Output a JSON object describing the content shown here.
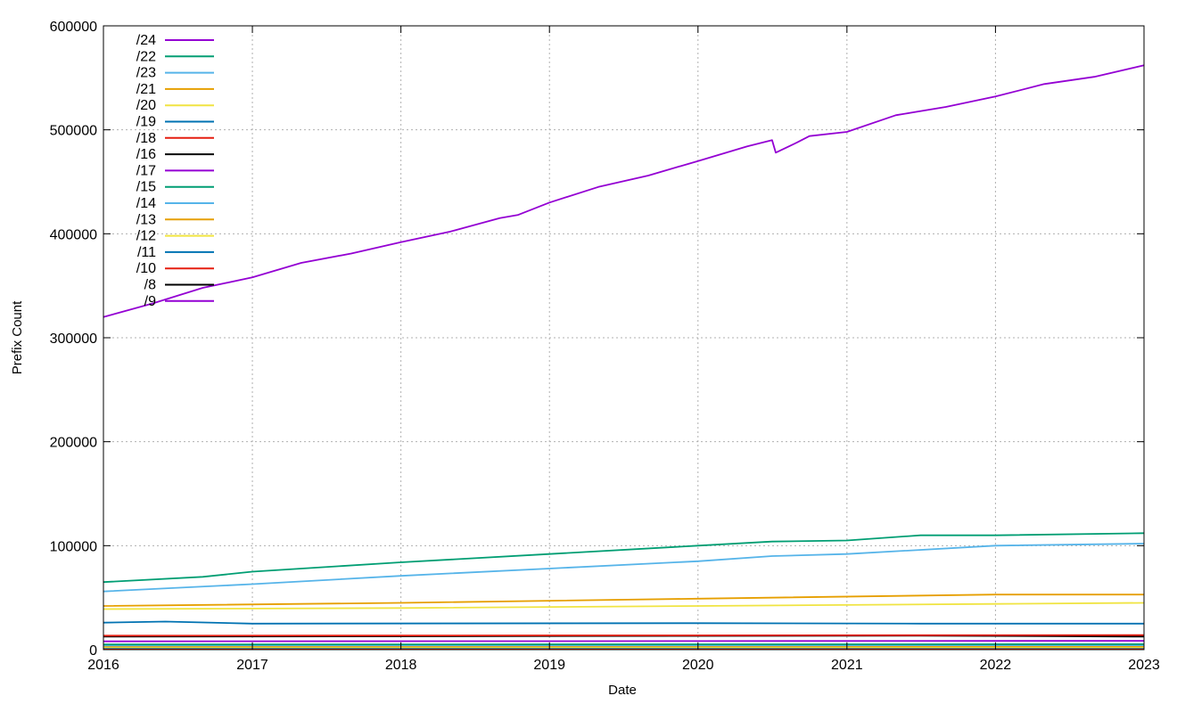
{
  "chart_data": {
    "type": "line",
    "title": "",
    "xlabel": "Date",
    "ylabel": "Prefix Count",
    "xlim": [
      "2016-01-01",
      "2023-01-01"
    ],
    "ylim": [
      0,
      600000
    ],
    "x_ticks": [
      "2016",
      "2017",
      "2018",
      "2019",
      "2020",
      "2021",
      "2022",
      "2023"
    ],
    "y_ticks": [
      "0",
      "100000",
      "200000",
      "300000",
      "400000",
      "500000",
      "600000"
    ],
    "grid": true,
    "legend_position": "top-left",
    "series": [
      {
        "name": "/24",
        "color": "#9400d3",
        "x": [
          "2016-01-01",
          "2016-05-01",
          "2016-09-01",
          "2017-01-01",
          "2017-05-01",
          "2017-09-01",
          "2018-01-01",
          "2018-05-01",
          "2018-09-01",
          "2018-10-15",
          "2019-01-01",
          "2019-05-01",
          "2019-09-01",
          "2020-01-01",
          "2020-05-01",
          "2020-07-01",
          "2020-07-10",
          "2020-09-01",
          "2020-10-01",
          "2021-01-01",
          "2021-05-01",
          "2021-09-01",
          "2022-01-01",
          "2022-05-01",
          "2022-09-01",
          "2023-01-01"
        ],
        "values": [
          320000,
          333000,
          348000,
          358000,
          372000,
          381000,
          392000,
          402000,
          415000,
          418000,
          430000,
          445000,
          456000,
          470000,
          484000,
          490000,
          478000,
          488000,
          494000,
          498000,
          514000,
          522000,
          532000,
          544000,
          551000,
          562000
        ]
      },
      {
        "name": "/22",
        "color": "#009e73",
        "x": [
          "2016-01-01",
          "2016-09-01",
          "2017-01-01",
          "2018-01-01",
          "2019-01-01",
          "2020-01-01",
          "2020-07-01",
          "2021-01-01",
          "2021-07-01",
          "2022-01-01",
          "2023-01-01"
        ],
        "values": [
          65000,
          70000,
          75000,
          84000,
          92000,
          100000,
          104000,
          105000,
          110000,
          110000,
          112000
        ]
      },
      {
        "name": "/23",
        "color": "#56b4e9",
        "x": [
          "2016-01-01",
          "2017-01-01",
          "2018-01-01",
          "2019-01-01",
          "2020-01-01",
          "2020-07-01",
          "2021-01-01",
          "2022-01-01",
          "2023-01-01"
        ],
        "values": [
          56000,
          63000,
          71000,
          78000,
          85000,
          90000,
          92000,
          100000,
          102000
        ]
      },
      {
        "name": "/21",
        "color": "#e69f00",
        "x": [
          "2016-01-01",
          "2018-01-01",
          "2020-01-01",
          "2022-01-01",
          "2023-01-01"
        ],
        "values": [
          42000,
          45000,
          49000,
          53000,
          53000
        ]
      },
      {
        "name": "/20",
        "color": "#f0e442",
        "x": [
          "2016-01-01",
          "2018-01-01",
          "2020-01-01",
          "2022-01-01",
          "2023-01-01"
        ],
        "values": [
          39000,
          40000,
          42000,
          44000,
          45000
        ]
      },
      {
        "name": "/19",
        "color": "#0072b2",
        "x": [
          "2016-01-01",
          "2016-06-01",
          "2017-01-01",
          "2020-01-01",
          "2021-07-01",
          "2023-01-01"
        ],
        "values": [
          26000,
          27000,
          25000,
          25500,
          25000,
          25000
        ]
      },
      {
        "name": "/18",
        "color": "#e51e10",
        "x": [
          "2016-01-01",
          "2023-01-01"
        ],
        "values": [
          13500,
          14000
        ]
      },
      {
        "name": "/16",
        "color": "#000000",
        "x": [
          "2016-01-01",
          "2021-07-01",
          "2022-05-01",
          "2023-01-01"
        ],
        "values": [
          12500,
          13500,
          13000,
          12500
        ]
      },
      {
        "name": "/17",
        "color": "#9400d3",
        "x": [
          "2016-01-01",
          "2020-01-01",
          "2023-01-01"
        ],
        "values": [
          8000,
          8200,
          8500
        ]
      },
      {
        "name": "/15",
        "color": "#009e73",
        "x": [
          "2016-01-01",
          "2023-01-01"
        ],
        "values": [
          5000,
          5200
        ]
      },
      {
        "name": "/14",
        "color": "#56b4e9",
        "x": [
          "2016-01-01",
          "2023-01-01"
        ],
        "values": [
          4000,
          4200
        ]
      },
      {
        "name": "/13",
        "color": "#e69f00",
        "x": [
          "2016-01-01",
          "2023-01-01"
        ],
        "values": [
          3000,
          3200
        ]
      },
      {
        "name": "/12",
        "color": "#f0e442",
        "x": [
          "2016-01-01",
          "2023-01-01"
        ],
        "values": [
          2200,
          2300
        ]
      },
      {
        "name": "/11",
        "color": "#0072b2",
        "x": [
          "2016-01-01",
          "2023-01-01"
        ],
        "values": [
          1600,
          1700
        ]
      },
      {
        "name": "/10",
        "color": "#e51e10",
        "x": [
          "2016-01-01",
          "2023-01-01"
        ],
        "values": [
          1000,
          1100
        ]
      },
      {
        "name": "/8",
        "color": "#000000",
        "x": [
          "2016-01-01",
          "2023-01-01"
        ],
        "values": [
          400,
          450
        ]
      },
      {
        "name": "/9",
        "color": "#9400d3",
        "x": [
          "2016-01-01",
          "2023-01-01"
        ],
        "values": [
          600,
          650
        ]
      }
    ]
  }
}
